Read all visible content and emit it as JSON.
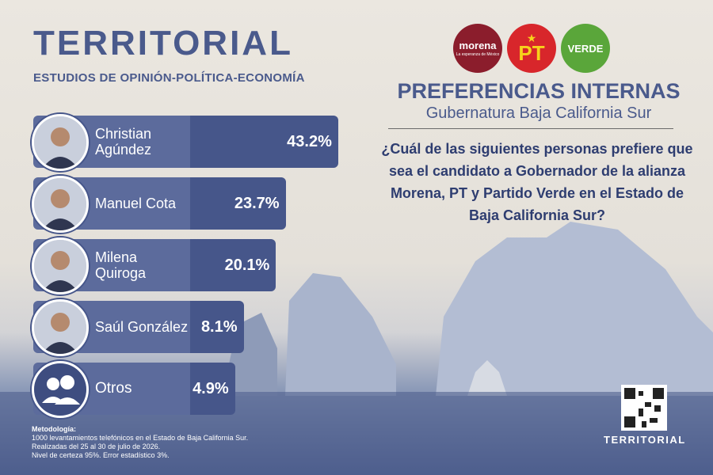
{
  "chart_data": {
    "type": "bar",
    "orientation": "horizontal",
    "brand": "TERRITORIAL",
    "tagline": "ESTUDIOS DE OPINIÓN-POLÍTICA-ECONOMÍA",
    "logos": [
      {
        "name": "morena",
        "slogan": "La esperanza de México",
        "color": "#8b1d2c"
      },
      {
        "name": "PT",
        "color": "#d8262b"
      },
      {
        "name": "VERDE",
        "color": "#5aa63a"
      }
    ],
    "title": "PREFERENCIAS INTERNAS",
    "subtitle": "Gubernatura Baja California Sur",
    "question": "¿Cuál de las siguientes personas prefiere que sea el candidato a Gobernador de la alianza Morena, PT y Partido Verde en el Estado de Baja California Sur?",
    "categories": [
      "Christian Agúndez",
      "Manuel Cota",
      "Milena Quiroga",
      "Saúl González",
      "Otros"
    ],
    "values": [
      43.2,
      23.7,
      20.1,
      8.1,
      4.9
    ],
    "value_labels": [
      "43.2%",
      "23.7%",
      "20.1%",
      "8.1%",
      "4.9%"
    ],
    "color": "#46568a",
    "methodology": [
      "Metodología:",
      "1000 levantamientos telefónicos en el Estado de Baja California Sur.",
      "Realizadas del 25 al 30 de julio de 2026.",
      "Nivel de certeza 95%. Error estadístico 3%."
    ],
    "footer_brand": "TERRITORIAL"
  }
}
